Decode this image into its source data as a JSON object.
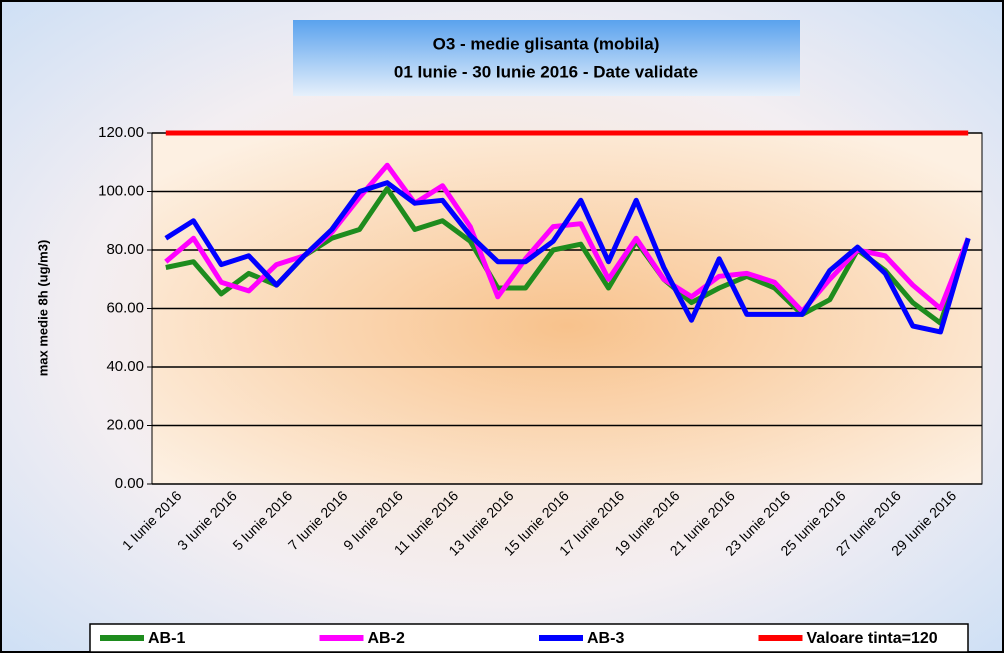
{
  "chart_data": {
    "type": "line",
    "title": "O3 - medie glisanta (mobila)",
    "subtitle": "01 Iunie - 30 Iunie 2016 -  Date validate",
    "ylabel": "max medie 8h (ug/m3)",
    "categories": [
      "1 Iunie 2016",
      null,
      "3 Iunie 2016",
      null,
      "5 Iunie 2016",
      null,
      "7 Iunie 2016",
      null,
      "9 Iunie 2016",
      null,
      "11 Iunie 2016",
      null,
      "13 Iunie 2016",
      null,
      "15 Iunie 2016",
      null,
      "17 Iunie 2016",
      null,
      "19 Iunie 2016",
      null,
      "21 Iunie 2016",
      null,
      "23 Iunie 2016",
      null,
      "25 Iunie 2016",
      null,
      "27 Iunie 2016",
      null,
      "29 Iunie 2016",
      null
    ],
    "series": [
      {
        "name": "AB-1",
        "color": "#1e8c1e",
        "values": [
          74,
          76,
          65,
          72,
          68,
          78,
          84,
          87,
          101,
          87,
          90,
          83,
          67,
          67,
          80,
          82,
          67,
          83,
          70,
          62,
          67,
          71,
          67,
          58,
          63,
          80,
          73,
          62,
          55,
          84
        ]
      },
      {
        "name": "AB-2",
        "color": "#ff00ff",
        "values": [
          76,
          84,
          69,
          66,
          75,
          78,
          86,
          98,
          109,
          96,
          102,
          88,
          64,
          77,
          88,
          89,
          70,
          84,
          70,
          64,
          71,
          72,
          69,
          59,
          70,
          80,
          78,
          68,
          60,
          84
        ]
      },
      {
        "name": "AB-3",
        "color": "#0000ff",
        "values": [
          84,
          90,
          75,
          78,
          68,
          78,
          87,
          100,
          103,
          96,
          97,
          85,
          76,
          76,
          83,
          97,
          76,
          97,
          74,
          56,
          77,
          58,
          58,
          58,
          73,
          81,
          72,
          54,
          52,
          84
        ]
      },
      {
        "name": "Valoare tinta=120",
        "color": "#ff0000",
        "values": [
          120,
          120,
          120,
          120,
          120,
          120,
          120,
          120,
          120,
          120,
          120,
          120,
          120,
          120,
          120,
          120,
          120,
          120,
          120,
          120,
          120,
          120,
          120,
          120,
          120,
          120,
          120,
          120,
          120,
          120
        ]
      }
    ],
    "ylim": [
      0,
      120
    ],
    "yticks": [
      {
        "value": 0,
        "label": "0.00"
      },
      {
        "value": 20,
        "label": "20.00"
      },
      {
        "value": 40,
        "label": "40.00"
      },
      {
        "value": 60,
        "label": "60.00"
      },
      {
        "value": 80,
        "label": "80.00"
      },
      {
        "value": 100,
        "label": "100.00"
      },
      {
        "value": 120,
        "label": "120.00"
      }
    ],
    "grid": true,
    "legend": "bottom"
  }
}
